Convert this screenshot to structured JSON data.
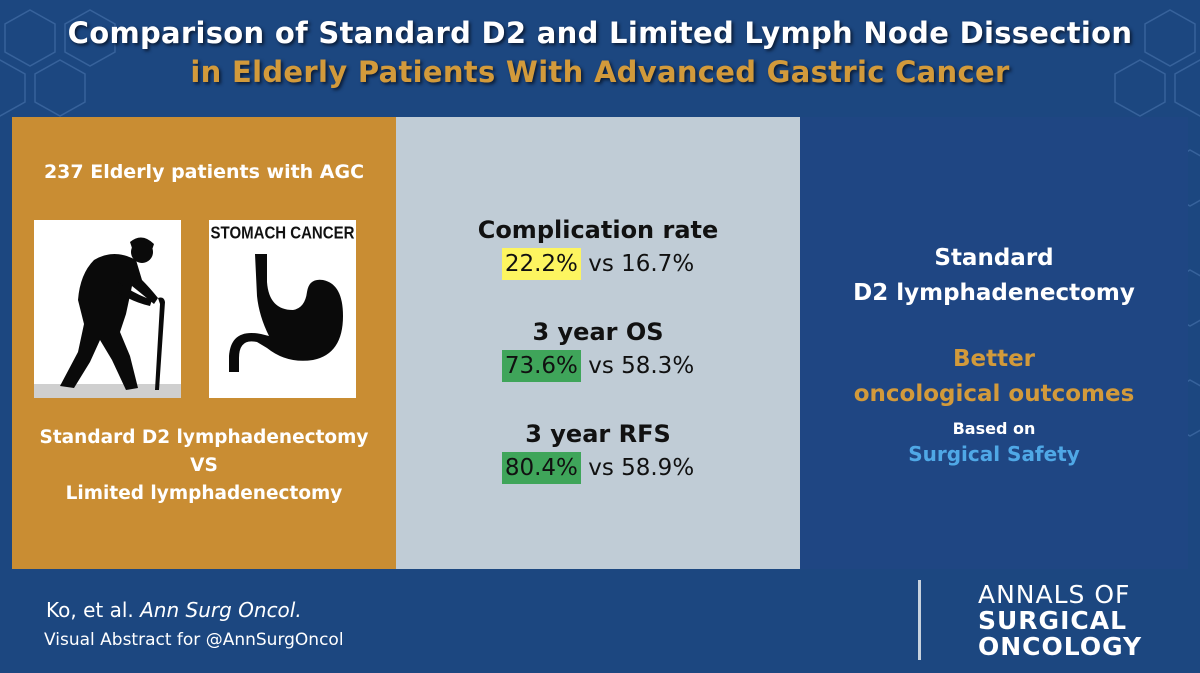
{
  "header": {
    "title_line1": "Comparison of Standard D2 and Limited Lymph Node Dissection",
    "title_line2": "in Elderly Patients With Advanced Gastric Cancer"
  },
  "left_panel": {
    "heading": "237 Elderly patients with AGC",
    "image_elderly_icon": "elderly-person-with-cane-icon",
    "image_stomach_label": "STOMACH CANCER",
    "image_stomach_icon": "stomach-icon",
    "comparison_line1": "Standard D2 lymphadenectomy",
    "comparison_line2": "VS",
    "comparison_line3": "Limited lymphadenectomy"
  },
  "middle_panel": {
    "stats": [
      {
        "title": "Complication rate",
        "highlight": "22.2%",
        "rest": " vs 16.7%",
        "highlight_color": "#fdf560"
      },
      {
        "title": "3 year OS",
        "highlight": "73.6%",
        "rest": " vs 58.3%",
        "highlight_color": "#3fa55a"
      },
      {
        "title": "3 year RFS",
        "highlight": "80.4%",
        "rest": " vs 58.9%",
        "highlight_color": "#3fa55a"
      }
    ]
  },
  "right_panel": {
    "line1": "Standard",
    "line2": "D2 lymphadenectomy",
    "line3": "Better",
    "line4": "oncological outcomes",
    "line5": "Based on",
    "line6": "Surgical Safety",
    "colors": {
      "white": "#ffffff",
      "gold": "#d29a3b",
      "blue": "#4fa8e6"
    }
  },
  "footer": {
    "citation_authors": "Ko, et al. ",
    "citation_journal": "Ann Surg Oncol.",
    "subtitle": "Visual Abstract for @AnnSurgOncol",
    "logo_line1": "ANNALS OF",
    "logo_line2": "SURGICAL",
    "logo_line3": "ONCOLOGY"
  },
  "colors": {
    "background": "#1c4780",
    "left_panel": "#c98d33",
    "middle_panel": "#c0ccd6",
    "right_panel": "#1f4683",
    "title_gold": "#d29a3b"
  }
}
